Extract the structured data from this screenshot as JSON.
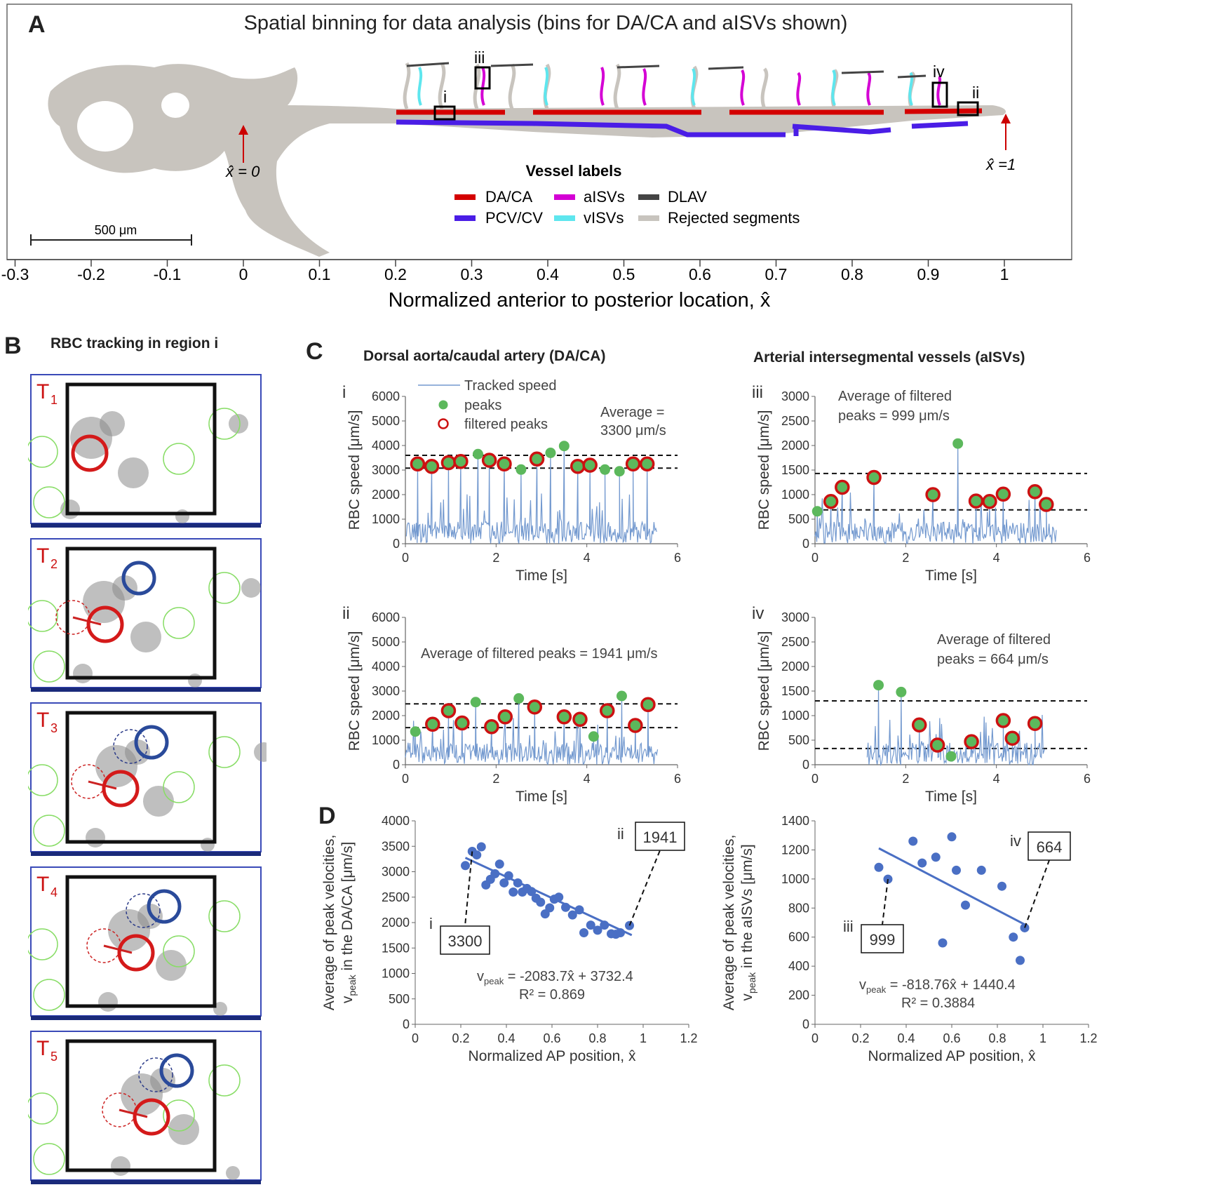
{
  "panelA": {
    "letter": "A",
    "title": "Spatial binning for data analysis (bins for DA/CA and aISVs shown)",
    "xlabel": "Normalized anterior to posterior location, x̂",
    "ticks": [
      -0.3,
      -0.2,
      -0.1,
      0,
      0.1,
      0.2,
      0.3,
      0.4,
      0.5,
      0.6,
      0.7,
      0.8,
      0.9,
      1
    ],
    "tick_labels": [
      "-0.3",
      "-0.2",
      "-0.1",
      "0",
      "0.1",
      "0.2",
      "0.3",
      "0.4",
      "0.5",
      "0.6",
      "0.7",
      "0.8",
      "0.9",
      "1"
    ],
    "marker_zero": "x̂ = 0",
    "marker_one": "x̂ =1",
    "scalebar": "500 μm",
    "regions": [
      "i",
      "ii",
      "iii",
      "iv"
    ],
    "legend_title": "Vessel labels",
    "legend": [
      {
        "label": "DA/CA",
        "color": "#d40000"
      },
      {
        "label": "aISVs",
        "color": "#d400d4"
      },
      {
        "label": "DLAV",
        "color": "#444444"
      },
      {
        "label": "PCV/CV",
        "color": "#4a1de6"
      },
      {
        "label": "vISVs",
        "color": "#5ee6ee"
      },
      {
        "label": "Rejected segments",
        "color": "#c8c4be"
      }
    ]
  },
  "panelB": {
    "letter": "B",
    "title": "RBC tracking in region i",
    "frames": [
      "T",
      "T",
      "T",
      "T",
      "T"
    ],
    "frame_subs": [
      "1",
      "2",
      "3",
      "4",
      "5"
    ]
  },
  "panelC": {
    "letter": "C",
    "col_left": "Dorsal aorta/caudal artery (DA/CA)",
    "col_right": "Arterial intersegmental vessels (aISVs)",
    "legend": {
      "line": "Tracked speed",
      "peak": "peaks",
      "filtered": "filtered peaks"
    },
    "ylabel": "RBC speed [μm/s]",
    "xlabel": "Time [s]"
  },
  "panelD": {
    "letter": "D",
    "left": {
      "ylabel1": "Average of peak velocities,",
      "ylabel2": "in the DA/CA [μm/s]",
      "xlabel": "Normalized AP position, x̂",
      "equation": "= -2083.7x̂ + 3732.4",
      "r2": "R² = 0.869",
      "callout_low": "3300",
      "callout_high": "1941",
      "label_low": "i",
      "label_high": "ii"
    },
    "right": {
      "ylabel1": "Average of peak velocities,",
      "ylabel2": "in the aISVs [μm/s]",
      "xlabel": "Normalized AP position, x̂",
      "equation": "= -818.76x̂ + 1440.4",
      "r2": "R² = 0.3884",
      "callout_low": "999",
      "callout_high": "664",
      "label_low": "iii",
      "label_high": "iv"
    },
    "vpeak": "v",
    "vpeak_sub": "peak"
  },
  "chart_data": [
    {
      "type": "line",
      "id": "Ci",
      "panel_label": "i",
      "xlim": [
        0,
        6
      ],
      "ylim": [
        0,
        6000
      ],
      "xticks": [
        0,
        2,
        4,
        6
      ],
      "yticks": [
        0,
        1000,
        2000,
        3000,
        4000,
        5000,
        6000
      ],
      "annotation": "Average = 3300 μm/s",
      "thresholds": [
        3600,
        3080
      ],
      "peaks": [
        [
          0.27,
          3250
        ],
        [
          0.58,
          3150
        ],
        [
          0.95,
          3300
        ],
        [
          1.22,
          3350
        ],
        [
          1.6,
          3650
        ],
        [
          1.85,
          3400
        ],
        [
          2.18,
          3250
        ],
        [
          2.55,
          3020
        ],
        [
          2.9,
          3450
        ],
        [
          3.2,
          3700
        ],
        [
          3.5,
          3980
        ],
        [
          3.8,
          3150
        ],
        [
          4.07,
          3200
        ],
        [
          4.4,
          3020
        ],
        [
          4.72,
          2950
        ],
        [
          5.02,
          3250
        ],
        [
          5.33,
          3250
        ]
      ],
      "filtered": [
        true,
        true,
        true,
        true,
        false,
        true,
        true,
        false,
        true,
        false,
        false,
        true,
        true,
        false,
        false,
        true,
        true
      ]
    },
    {
      "type": "line",
      "id": "Cii",
      "panel_label": "ii",
      "xlim": [
        0,
        6
      ],
      "ylim": [
        0,
        6000
      ],
      "xticks": [
        0,
        2,
        4,
        6
      ],
      "yticks": [
        0,
        1000,
        2000,
        3000,
        4000,
        5000,
        6000
      ],
      "annotation": "Average of filtered peaks = 1941 μm/s",
      "thresholds": [
        2480,
        1510
      ],
      "peaks": [
        [
          0.22,
          1350
        ],
        [
          0.6,
          1650
        ],
        [
          0.95,
          2200
        ],
        [
          1.25,
          1700
        ],
        [
          1.55,
          2550
        ],
        [
          1.9,
          1550
        ],
        [
          2.2,
          1950
        ],
        [
          2.5,
          2700
        ],
        [
          2.85,
          2350
        ],
        [
          3.5,
          1950
        ],
        [
          3.85,
          1850
        ],
        [
          4.15,
          1150
        ],
        [
          4.45,
          2200
        ],
        [
          4.77,
          2800
        ],
        [
          5.07,
          1600
        ],
        [
          5.35,
          2450
        ]
      ],
      "filtered": [
        false,
        true,
        true,
        true,
        false,
        true,
        true,
        false,
        true,
        true,
        true,
        false,
        true,
        false,
        true,
        true
      ]
    },
    {
      "type": "line",
      "id": "Ciii",
      "panel_label": "iii",
      "xlim": [
        0,
        6
      ],
      "ylim": [
        0,
        3000
      ],
      "xticks": [
        0,
        2,
        4,
        6
      ],
      "yticks": [
        0,
        500,
        1000,
        1500,
        2000,
        2500,
        3000
      ],
      "annotation": "Average of filtered peaks = 999 μm/s",
      "thresholds": [
        1430,
        690
      ],
      "peaks": [
        [
          0.05,
          660
        ],
        [
          0.35,
          860
        ],
        [
          0.6,
          1150
        ],
        [
          1.3,
          1350
        ],
        [
          2.6,
          1000
        ],
        [
          3.15,
          2040
        ],
        [
          3.55,
          870
        ],
        [
          3.85,
          860
        ],
        [
          4.15,
          1010
        ],
        [
          4.85,
          1060
        ],
        [
          5.1,
          800
        ]
      ],
      "filtered": [
        false,
        true,
        true,
        true,
        true,
        false,
        true,
        true,
        true,
        true,
        true
      ]
    },
    {
      "type": "line",
      "id": "Civ",
      "panel_label": "iv",
      "xlim": [
        0,
        6
      ],
      "ylim": [
        0,
        3000
      ],
      "xticks": [
        0,
        2,
        4,
        6
      ],
      "yticks": [
        0,
        500,
        1000,
        1500,
        2000,
        2500,
        3000
      ],
      "annotation": "Average of filtered peaks = 664 μm/s",
      "thresholds": [
        1300,
        330
      ],
      "peaks": [
        [
          1.4,
          1620
        ],
        [
          1.9,
          1480
        ],
        [
          2.3,
          810
        ],
        [
          2.7,
          400
        ],
        [
          3.0,
          170
        ],
        [
          3.45,
          470
        ],
        [
          4.15,
          900
        ],
        [
          4.35,
          540
        ],
        [
          4.85,
          840
        ]
      ],
      "filtered": [
        false,
        false,
        true,
        true,
        false,
        true,
        true,
        true,
        true
      ]
    },
    {
      "type": "scatter",
      "id": "Dleft",
      "xlim": [
        0,
        1.2
      ],
      "ylim": [
        0,
        4000
      ],
      "xticks": [
        0,
        0.2,
        0.4,
        0.6,
        0.8,
        1,
        1.2
      ],
      "yticks": [
        0,
        500,
        1000,
        1500,
        2000,
        2500,
        3000,
        3500,
        4000
      ],
      "points": [
        [
          0.22,
          3120
        ],
        [
          0.25,
          3400
        ],
        [
          0.27,
          3330
        ],
        [
          0.29,
          3490
        ],
        [
          0.31,
          2740
        ],
        [
          0.33,
          2850
        ],
        [
          0.35,
          2960
        ],
        [
          0.37,
          3150
        ],
        [
          0.39,
          2780
        ],
        [
          0.41,
          2920
        ],
        [
          0.43,
          2600
        ],
        [
          0.45,
          2780
        ],
        [
          0.47,
          2600
        ],
        [
          0.49,
          2670
        ],
        [
          0.51,
          2610
        ],
        [
          0.53,
          2480
        ],
        [
          0.55,
          2400
        ],
        [
          0.57,
          2170
        ],
        [
          0.59,
          2290
        ],
        [
          0.61,
          2460
        ],
        [
          0.63,
          2500
        ],
        [
          0.66,
          2300
        ],
        [
          0.69,
          2150
        ],
        [
          0.72,
          2250
        ],
        [
          0.74,
          1800
        ],
        [
          0.77,
          1950
        ],
        [
          0.8,
          1850
        ],
        [
          0.83,
          1950
        ],
        [
          0.86,
          1780
        ],
        [
          0.88,
          1770
        ],
        [
          0.9,
          1800
        ],
        [
          0.94,
          1941
        ]
      ],
      "fit": {
        "slope": -2083.7,
        "intercept": 3732.4,
        "x_range": [
          0.22,
          0.95
        ]
      }
    },
    {
      "type": "scatter",
      "id": "Dright",
      "xlim": [
        0,
        1.2
      ],
      "ylim": [
        0,
        1400
      ],
      "xticks": [
        0,
        0.2,
        0.4,
        0.6,
        0.8,
        1,
        1.2
      ],
      "yticks": [
        0,
        200,
        400,
        600,
        800,
        1000,
        1200,
        1400
      ],
      "points": [
        [
          0.28,
          1080
        ],
        [
          0.32,
          999
        ],
        [
          0.43,
          1260
        ],
        [
          0.47,
          1110
        ],
        [
          0.53,
          1150
        ],
        [
          0.56,
          560
        ],
        [
          0.6,
          1290
        ],
        [
          0.62,
          1060
        ],
        [
          0.66,
          820
        ],
        [
          0.73,
          1060
        ],
        [
          0.82,
          950
        ],
        [
          0.87,
          600
        ],
        [
          0.9,
          440
        ],
        [
          0.92,
          664
        ]
      ],
      "fit": {
        "slope": -818.76,
        "intercept": 1440.4,
        "x_range": [
          0.28,
          0.92
        ]
      }
    }
  ]
}
